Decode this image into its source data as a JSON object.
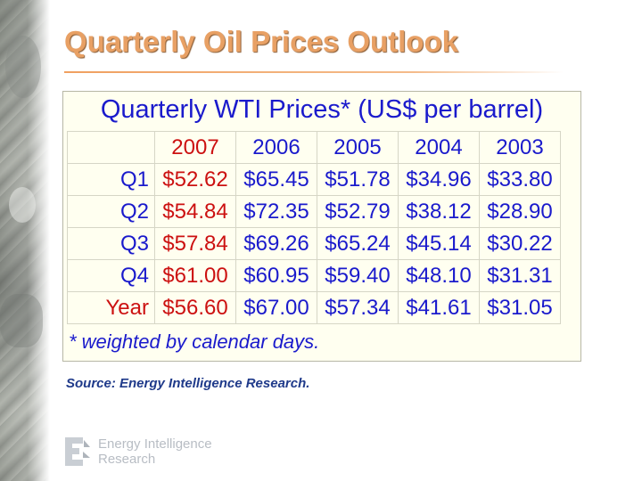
{
  "slide": {
    "title": "Quarterly Oil Prices Outlook",
    "source": "Source: Energy Intelligence Research."
  },
  "table": {
    "caption": "Quarterly WTI Prices* (US$ per barrel)",
    "columns": [
      "2007",
      "2006",
      "2005",
      "2004",
      "2003"
    ],
    "rows": [
      {
        "label": "Q1",
        "values": [
          "$52.62",
          "$65.45",
          "$51.78",
          "$34.96",
          "$33.80"
        ]
      },
      {
        "label": "Q2",
        "values": [
          "$54.84",
          "$72.35",
          "$52.79",
          "$38.12",
          "$28.90"
        ]
      },
      {
        "label": "Q3",
        "values": [
          "$57.84",
          "$69.26",
          "$65.24",
          "$45.14",
          "$30.22"
        ]
      },
      {
        "label": "Q4",
        "values": [
          "$61.00",
          "$60.95",
          "$59.40",
          "$48.10",
          "$31.31"
        ]
      },
      {
        "label": "Year",
        "values": [
          "$56.60",
          "$67.00",
          "$57.34",
          "$41.61",
          "$31.05"
        ]
      }
    ],
    "footnote": "* weighted by calendar days."
  },
  "logo": {
    "line1": "Energy Intelligence",
    "line2": "Research"
  },
  "colors": {
    "title": "#e8a064",
    "table_text": "#1a1acc",
    "highlight_2007": "#cc1111",
    "table_background": "#fffff0",
    "source_text": "#1f3a8a"
  },
  "icons": {
    "logo": "energy-intelligence-logo-icon"
  }
}
